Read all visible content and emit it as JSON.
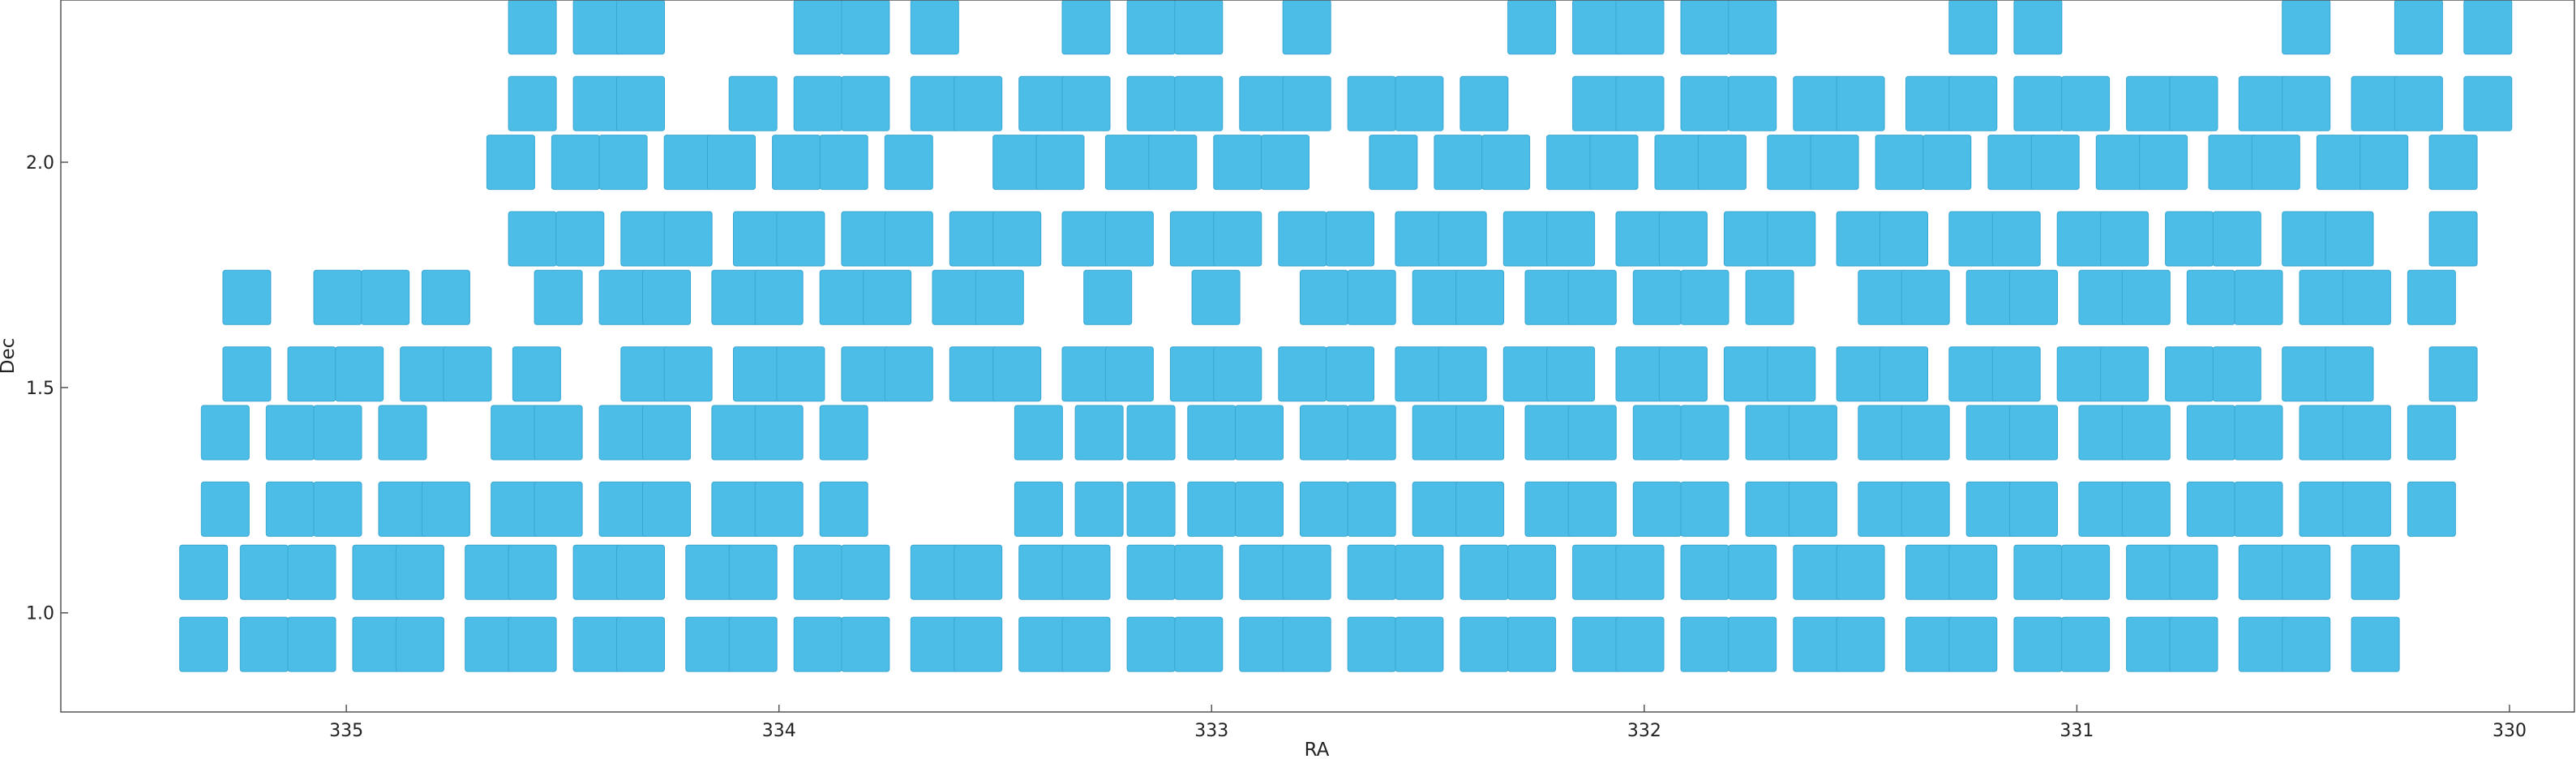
{
  "chart_data": {
    "type": "scatter",
    "marker": "square",
    "title": "",
    "xlabel": "RA",
    "ylabel": "Dec",
    "xlim": [
      335.66,
      329.85
    ],
    "ylim": [
      0.78,
      2.36
    ],
    "x_reversed": true,
    "grid": false,
    "xticks": [
      335,
      334,
      333,
      332,
      331,
      330
    ],
    "yticks": [
      1.0,
      1.5,
      2.0
    ],
    "ytick_labels": [
      "1.0",
      "1.5",
      "2.0"
    ],
    "color": "#4bbde6",
    "rows": [
      {
        "dec": 0.93,
        "ra": [
          335.33,
          335.19,
          335.08,
          334.93,
          334.83,
          334.67,
          334.57,
          334.42,
          334.32,
          334.16,
          334.06,
          333.91,
          333.8,
          333.64,
          333.54,
          333.39,
          333.29,
          333.14,
          333.03,
          332.88,
          332.78,
          332.63,
          332.52,
          332.37,
          332.26,
          332.11,
          332.01,
          331.86,
          331.75,
          331.6,
          331.5,
          331.34,
          331.24,
          331.09,
          330.98,
          330.83,
          330.73,
          330.57,
          330.47,
          330.31
        ]
      },
      {
        "dec": 1.09,
        "ra": [
          335.33,
          335.19,
          335.08,
          334.93,
          334.83,
          334.67,
          334.57,
          334.42,
          334.32,
          334.16,
          334.06,
          333.91,
          333.8,
          333.64,
          333.54,
          333.39,
          333.29,
          333.14,
          333.03,
          332.88,
          332.78,
          332.63,
          332.52,
          332.37,
          332.26,
          332.11,
          332.01,
          331.86,
          331.75,
          331.6,
          331.5,
          331.34,
          331.24,
          331.09,
          330.98,
          330.83,
          330.73,
          330.57,
          330.47,
          330.31
        ]
      },
      {
        "dec": 1.23,
        "ra": [
          335.28,
          335.13,
          335.02,
          334.87,
          334.77,
          334.61,
          334.51,
          334.36,
          334.26,
          334.1,
          334.0,
          333.85,
          333.4,
          333.26,
          333.14,
          333.0,
          332.89,
          332.74,
          332.63,
          332.48,
          332.38,
          332.22,
          332.12,
          331.97,
          331.86,
          331.71,
          331.61,
          331.45,
          331.35,
          331.2,
          331.1,
          330.94,
          330.84,
          330.69,
          330.58,
          330.43,
          330.33,
          330.18
        ]
      },
      {
        "dec": 1.4,
        "ra": [
          335.28,
          335.13,
          335.02,
          334.87,
          334.61,
          334.51,
          334.36,
          334.26,
          334.1,
          334.0,
          333.85,
          333.4,
          333.26,
          333.14,
          333.0,
          332.89,
          332.74,
          332.63,
          332.48,
          332.38,
          332.22,
          332.12,
          331.97,
          331.86,
          331.71,
          331.61,
          331.45,
          331.35,
          331.2,
          331.1,
          330.94,
          330.84,
          330.69,
          330.58,
          330.43,
          330.33,
          330.18
        ]
      },
      {
        "dec": 1.53,
        "ra": [
          335.23,
          335.08,
          334.97,
          334.82,
          334.72,
          334.56,
          334.31,
          334.21,
          334.05,
          333.95,
          333.8,
          333.7,
          333.55,
          333.45,
          333.29,
          333.19,
          333.04,
          332.94,
          332.79,
          332.68,
          332.52,
          332.42,
          332.27,
          332.17,
          332.01,
          331.91,
          331.76,
          331.66,
          331.5,
          331.4,
          331.24,
          331.14,
          330.99,
          330.89,
          330.74,
          330.63,
          330.47,
          330.37,
          330.13
        ]
      },
      {
        "dec": 1.7,
        "ra": [
          335.23,
          335.02,
          334.91,
          334.77,
          334.51,
          334.36,
          334.26,
          334.1,
          334.0,
          333.85,
          333.75,
          333.59,
          333.49,
          333.24,
          332.99,
          332.74,
          332.63,
          332.48,
          332.38,
          332.22,
          332.12,
          331.97,
          331.86,
          331.71,
          331.45,
          331.35,
          331.2,
          331.1,
          330.94,
          330.84,
          330.69,
          330.58,
          330.43,
          330.33,
          330.18
        ]
      },
      {
        "dec": 1.83,
        "ra": [
          334.57,
          334.46,
          334.31,
          334.21,
          334.05,
          333.95,
          333.8,
          333.7,
          333.55,
          333.45,
          333.29,
          333.19,
          333.04,
          332.94,
          332.79,
          332.68,
          332.52,
          332.42,
          332.27,
          332.17,
          332.01,
          331.91,
          331.76,
          331.66,
          331.5,
          331.4,
          331.24,
          331.14,
          330.99,
          330.89,
          330.74,
          330.63,
          330.47,
          330.37,
          330.13
        ]
      },
      {
        "dec": 2.0,
        "ra": [
          334.62,
          334.47,
          334.36,
          334.21,
          334.11,
          333.96,
          333.85,
          333.7,
          333.6,
          333.45,
          333.35,
          333.19,
          333.09,
          332.94,
          332.83,
          332.68,
          332.58,
          332.43,
          332.32,
          332.17,
          332.07,
          331.92,
          331.82,
          331.66,
          331.56,
          331.41,
          331.3,
          331.15,
          331.05,
          330.9,
          330.8,
          330.64,
          330.54,
          330.39,
          330.29,
          330.13
        ]
      },
      {
        "dec": 2.13,
        "ra": [
          334.57,
          334.42,
          334.32,
          334.16,
          334.06,
          333.91,
          333.8,
          333.64,
          333.54,
          333.39,
          333.29,
          333.14,
          333.03,
          332.88,
          332.78,
          332.63,
          332.52,
          332.37,
          332.26,
          332.11,
          332.01,
          331.86,
          331.75,
          331.6,
          331.5,
          331.34,
          331.24,
          331.09,
          330.98,
          330.83,
          330.73,
          330.57,
          330.47,
          330.31,
          330.21,
          330.05
        ]
      },
      {
        "dec": 2.3,
        "ra": [
          334.57,
          334.42,
          334.32,
          334.16,
          334.06,
          333.91,
          333.8,
          333.64,
          333.54,
          333.39,
          333.29,
          333.14,
          333.03,
          332.88,
          332.78,
          332.63,
          332.52,
          332.37,
          332.26,
          332.11,
          332.01,
          331.86,
          331.75,
          331.6,
          331.5,
          331.34,
          331.24,
          331.09,
          330.98,
          330.83,
          330.73,
          330.57,
          330.47,
          330.31,
          330.21,
          330.05
        ]
      }
    ],
    "missing": [
      [
        1.23,
        [
          333.7,
          333.54
        ]
      ],
      [
        1.4,
        [
          334.77,
          333.54
        ]
      ],
      [
        1.53,
        [
          334.46
        ]
      ],
      [
        1.7,
        [
          333.34,
          333.09,
          332.88,
          331.61
        ]
      ],
      [
        2.0,
        [
          333.8,
          333.6,
          332.68
        ]
      ],
      [
        2.13,
        [
          334.16,
          332.68,
          332.43,
          332.26
        ]
      ],
      [
        2.3,
        [
          334.16,
          334.06,
          333.54,
          333.39,
          332.88,
          332.63,
          332.52,
          332.37,
          331.6,
          331.5,
          331.34,
          330.98,
          330.83,
          330.73,
          330.57,
          330.31
        ]
      ]
    ]
  }
}
